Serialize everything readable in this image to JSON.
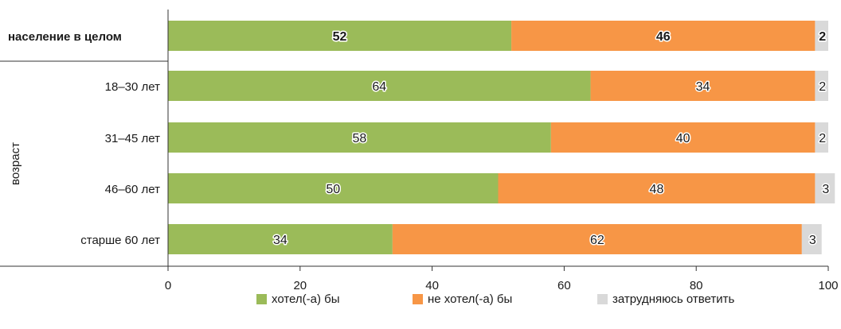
{
  "chart_data": {
    "type": "bar",
    "orientation": "horizontal",
    "stacked": true,
    "categories": [
      "население в целом",
      "18–30 лет",
      "31–45 лет",
      "46–60 лет",
      "старше 60 лет"
    ],
    "group_label": "возраст",
    "series": [
      {
        "name": "хотел(-а) бы",
        "color": "#9bbb59",
        "values": [
          52,
          64,
          58,
          50,
          34
        ]
      },
      {
        "name": "не хотел(-а) бы",
        "color": "#f79646",
        "values": [
          46,
          34,
          40,
          48,
          62
        ]
      },
      {
        "name": "затрудняюсь ответить",
        "color": "#d9d9d9",
        "values": [
          2,
          2,
          2,
          3,
          3
        ]
      }
    ],
    "xlim": [
      0,
      100
    ],
    "xticks": [
      "0",
      "20",
      "40",
      "60",
      "80",
      "100"
    ],
    "grid": false,
    "legend_position": "bottom"
  }
}
